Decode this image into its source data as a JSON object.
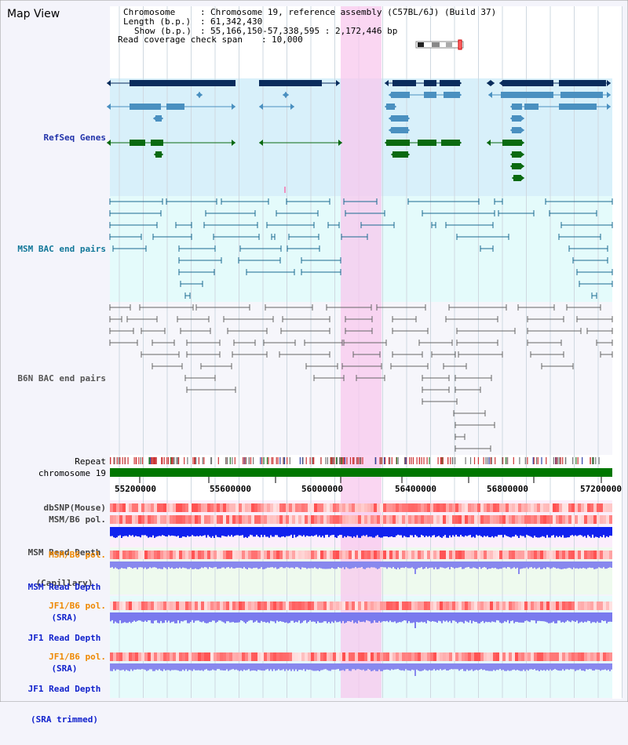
{
  "header": {
    "title": "Map View",
    "chromosome_label": "Chromosome",
    "chromosome_value": "Chromosome 19, reference assembly (C57BL/6J) (Build 37)",
    "length_label": "Length (b.p.)",
    "length_value": "61,342,430",
    "show_label": "Show (b.p.)",
    "show_value": "55,166,150-57,338,595 : 2,172,446 bp",
    "coverage_label": "Read coverage check span",
    "coverage_value": "10,000"
  },
  "tracks": {
    "refseq": "RefSeq Genes",
    "msm_bac": "MSM BAC end pairs",
    "b6n_bac": "B6N BAC end pairs",
    "repeat": "Repeat",
    "chromosome": "chromosome 19",
    "dbsnp": "dbSNP(Mouse)",
    "msm_b6_pol_1": "MSM/B6 pol.",
    "msm_depth_cap_1": "MSM Read Depth",
    "msm_depth_cap_2": "(Capillary)",
    "msm_b6_pol_2": "MSM/B6 pol.",
    "msm_depth_sra_1": "MSM Read Depth",
    "msm_depth_sra_2": "(SRA)",
    "jf1_b6_pol_1": "JF1/B6 pol.",
    "jf1_depth_sra_1": "JF1 Read Depth",
    "jf1_depth_sra_2": "(SRA)",
    "jf1_b6_pol_2": "JF1/B6 pol.",
    "jf1_depth_trim_1": "JF1 Read Depth",
    "jf1_depth_trim_2": "(SRA trimmed)"
  },
  "axis": {
    "ticks": [
      "55200000",
      "55600000",
      "56000000",
      "56400000",
      "56800000",
      "57200000"
    ]
  },
  "colors": {
    "refseq_label": "#2233aa",
    "msm_label": "#117799",
    "b6n_label": "#555555",
    "orange_label": "#ee8800",
    "blue_label": "#1122cc",
    "highlight": "#f8d0f0",
    "chromosome_bar": "#007700"
  }
}
